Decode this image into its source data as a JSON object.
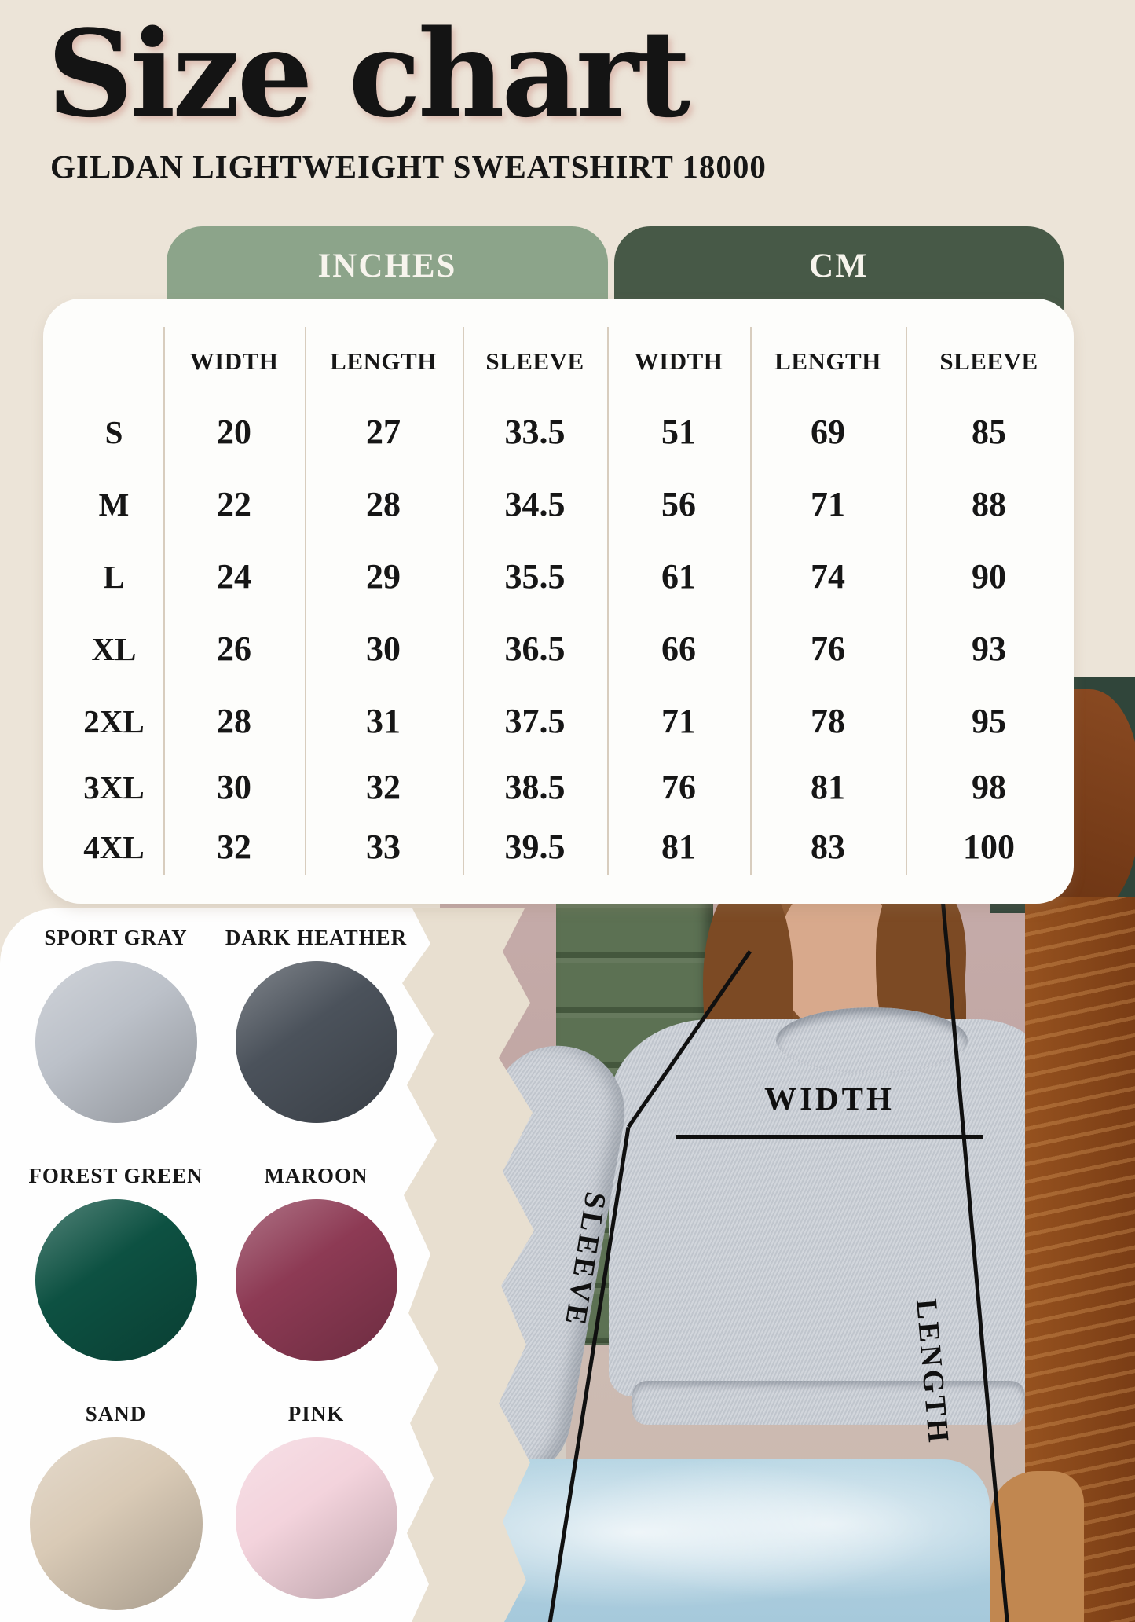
{
  "header": {
    "title": "Size chart",
    "subtitle": "GILDAN LIGHTWEIGHT SWEATSHIRT 18000"
  },
  "unit_tabs": {
    "inches_label": "INCHES",
    "cm_label": "CM"
  },
  "size_table": {
    "column_headers": [
      "WIDTH",
      "LENGTH",
      "SLEEVE",
      "WIDTH",
      "LENGTH",
      "SLEEVE"
    ],
    "rows": [
      {
        "cells": [
          "S",
          "20",
          "27",
          "33.5",
          "51",
          "69",
          "85"
        ]
      },
      {
        "cells": [
          "M",
          "22",
          "28",
          "34.5",
          "56",
          "71",
          "88"
        ]
      },
      {
        "cells": [
          "L",
          "24",
          "29",
          "35.5",
          "61",
          "74",
          "90"
        ]
      },
      {
        "cells": [
          "XL",
          "26",
          "30",
          "36.5",
          "66",
          "76",
          "93"
        ]
      },
      {
        "cells": [
          "2XL",
          "28",
          "31",
          "37.5",
          "71",
          "78",
          "95"
        ]
      },
      {
        "cells": [
          "3XL",
          "30",
          "32",
          "38.5",
          "76",
          "81",
          "98"
        ]
      },
      {
        "cells": [
          "4XL",
          "32",
          "33",
          "39.5",
          "81",
          "83",
          "100"
        ]
      }
    ]
  },
  "swatches": {
    "items": [
      {
        "label": "SPORT GRAY",
        "color": "#bcc1c9"
      },
      {
        "label": "DARK HEATHER",
        "color": "#4b525b"
      },
      {
        "label": "FOREST GREEN",
        "color": "#0d5142"
      },
      {
        "label": "MAROON",
        "color": "#8d3a54"
      },
      {
        "label": "SAND",
        "color": "#d9cab6"
      },
      {
        "label": "PINK",
        "color": "#f3d3dc"
      }
    ]
  },
  "photo": {
    "measurements": {
      "width": "WIDTH",
      "sleeve": "SLEEVE",
      "length": "LENGTH"
    }
  },
  "colors": {
    "background": "#ece4d8",
    "inches_pill": "#8ca48a",
    "cm_pill": "#475947",
    "card": "#fdfdfb",
    "divider": "#d8cdbe",
    "table_text": "#161616"
  }
}
